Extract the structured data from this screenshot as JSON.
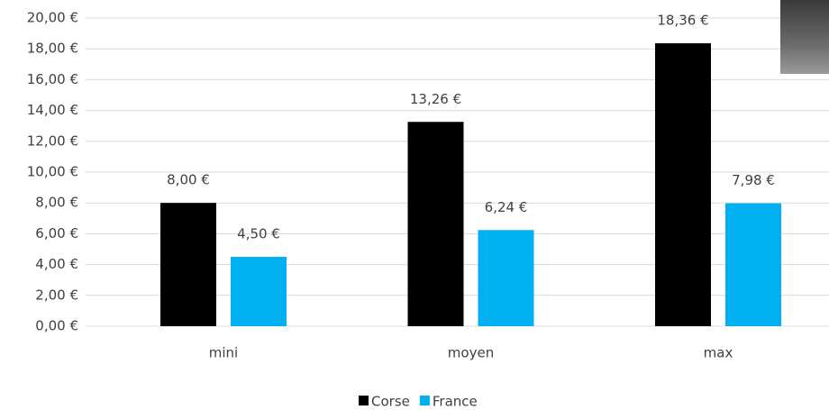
{
  "chart_data": {
    "type": "bar",
    "categories": [
      "mini",
      "moyen",
      "max"
    ],
    "series": [
      {
        "name": "Corse",
        "color": "#000000",
        "values": [
          8.0,
          13.26,
          18.36
        ],
        "value_labels": [
          "8,00 €",
          "13,26 €",
          "18,36 €"
        ]
      },
      {
        "name": "France",
        "color": "#00b0f0",
        "values": [
          4.5,
          6.24,
          7.98
        ],
        "value_labels": [
          "4,50 €",
          "6,24 €",
          "7,98 €"
        ]
      }
    ],
    "ylim": [
      0,
      20
    ],
    "yticks": [
      {
        "value": 0,
        "label": "0,00 €"
      },
      {
        "value": 2,
        "label": "2,00 €"
      },
      {
        "value": 4,
        "label": "4,00 €"
      },
      {
        "value": 6,
        "label": "6,00 €"
      },
      {
        "value": 8,
        "label": "8,00 €"
      },
      {
        "value": 10,
        "label": "10,00 €"
      },
      {
        "value": 12,
        "label": "12,00 €"
      },
      {
        "value": 14,
        "label": "14,00 €"
      },
      {
        "value": 16,
        "label": "16,00 €"
      },
      {
        "value": 18,
        "label": "18,00 €"
      },
      {
        "value": 20,
        "label": "20,00 €"
      }
    ],
    "grid": true,
    "legend": "bottom"
  }
}
